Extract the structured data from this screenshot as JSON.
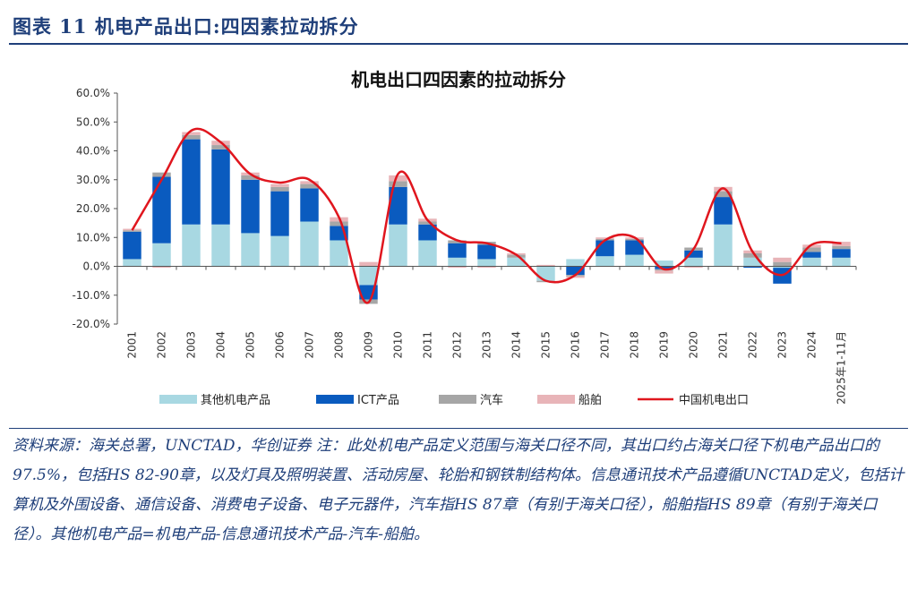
{
  "header": {
    "title": "图表 11   机电产品出口:四因素拉动拆分"
  },
  "footnote": "资料来源：海关总署，UNCTAD，华创证券   注：此处机电产品定义范围与海关口径不同，其出口约占海关口径下机电产品出口的97.5%，包括HS 82-90章，以及灯具及照明装置、活动房屋、轮胎和钢铁制结构体。信息通讯技术产品遵循UNCTAD定义，包括计算机及外围设备、通信设备、消费电子设备、电子元器件，汽车指HS 87章（有别于海关口径），船舶指HS 89章（有别于海关口径）。其他机电产品=机电产品-信息通讯技术产品-汽车-船舶。",
  "chart_data": {
    "type": "bar",
    "stacked": true,
    "title": "机电出口四因素的拉动拆分",
    "xlabel": "",
    "ylabel": "",
    "ylim": [
      -20,
      60
    ],
    "yticks": [
      "-20.0%",
      "-10.0%",
      "0.0%",
      "10.0%",
      "20.0%",
      "30.0%",
      "40.0%",
      "50.0%",
      "60.0%"
    ],
    "legend_position": "bottom",
    "categories": [
      "2001",
      "2002",
      "2003",
      "2004",
      "2005",
      "2006",
      "2007",
      "2008",
      "2009",
      "2010",
      "2011",
      "2012",
      "2013",
      "2014",
      "2015",
      "2016",
      "2017",
      "2018",
      "2019",
      "2020",
      "2021",
      "2022",
      "2023",
      "2024",
      "2025年1-11月"
    ],
    "series": [
      {
        "name": "其他机电产品",
        "color": "#a8d8e2",
        "values": [
          2.5,
          8,
          14.5,
          14.5,
          11.5,
          10.5,
          15.5,
          9,
          -6.5,
          14.5,
          9,
          3,
          2.5,
          3,
          -5,
          2.5,
          3.5,
          4,
          2,
          3,
          14.5,
          3,
          -0.5,
          3,
          3
        ]
      },
      {
        "name": "ICT产品",
        "color": "#0a5bbf",
        "values": [
          9.5,
          23,
          29.5,
          26,
          18.5,
          15.5,
          11.5,
          5,
          -5,
          13,
          5.5,
          5,
          5,
          0,
          0,
          -3,
          5.5,
          5,
          -1,
          2.5,
          9.5,
          -0.5,
          -5.5,
          2,
          3
        ]
      },
      {
        "name": "汽车",
        "color": "#a6a6a6",
        "values": [
          0.5,
          1.5,
          1.5,
          1.5,
          1.5,
          1.5,
          1.5,
          1.5,
          -1.5,
          2,
          1,
          1,
          1,
          1,
          -0.5,
          -0.5,
          0.5,
          0.5,
          -0.5,
          1,
          2,
          1.5,
          1.5,
          1.5,
          1
        ]
      },
      {
        "name": "船舶",
        "color": "#e8b4b8",
        "values": [
          0.5,
          -0.5,
          1,
          1.5,
          1,
          1,
          1,
          1.5,
          1.5,
          2,
          1,
          -0.5,
          -0.5,
          0.5,
          0.5,
          -0.5,
          0.5,
          0.5,
          -1,
          -0.5,
          1.5,
          1,
          1.5,
          1,
          1.5
        ]
      },
      {
        "name": "中国机电出口",
        "type": "line",
        "color": "#e0161e",
        "values": [
          12.5,
          30,
          47,
          43,
          32,
          29,
          30,
          17,
          -12.5,
          32,
          16,
          9,
          8,
          4,
          -5,
          -3,
          9,
          10,
          -1,
          6,
          27,
          5,
          -3,
          7.5,
          8
        ]
      }
    ]
  }
}
